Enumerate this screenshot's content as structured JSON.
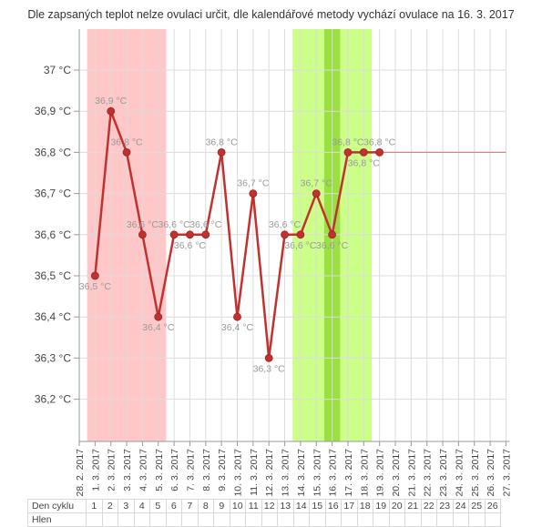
{
  "title": "Dle zapsaných teplot nelze ovulaci určit, dle kalendářové metody vychází ovulace na 16. 3. 2017",
  "table": {
    "row1_label": "Den cyklu",
    "row2_label": "Hlen",
    "days": [
      "1",
      "2",
      "3",
      "4",
      "5",
      "6",
      "7",
      "8",
      "9",
      "10",
      "11",
      "12",
      "13",
      "14",
      "15",
      "16",
      "17",
      "18",
      "19",
      "20",
      "21",
      "22",
      "23",
      "24",
      "25",
      "26"
    ]
  },
  "chart_data": {
    "type": "line",
    "title": "Dle zapsaných teplot nelze ovulaci určit, dle kalendářové metody vychází ovulace na 16. 3. 2017",
    "xlabel": "",
    "ylabel": "",
    "ylim": [
      36.1,
      37.1
    ],
    "y_ticks": [
      "37 °C",
      "36,9 °C",
      "36,8 °C",
      "36,7 °C",
      "36,6 °C",
      "36,5 °C",
      "36,4 °C",
      "36,3 °C",
      "36,2 °C"
    ],
    "y_tick_values": [
      37.0,
      36.9,
      36.8,
      36.7,
      36.6,
      36.5,
      36.4,
      36.3,
      36.2
    ],
    "categories": [
      "28.2.2017",
      "1.3.2017",
      "2.3.2017",
      "3.3.2017",
      "4.3.2017",
      "5.3.2017",
      "6.3.2017",
      "7.3.2017",
      "8.3.2017",
      "9.3.2017",
      "10.3.2017",
      "11.3.2017",
      "12.3.2017",
      "13.3.2017",
      "14.3.2017",
      "15.3.2017",
      "16.3.2017",
      "17.3.2017",
      "18.3.2017",
      "19.3.2017",
      "20.3.2017",
      "21.3.2017",
      "22.3.2017",
      "23.3.2017",
      "24.3.2017",
      "25.3.2017",
      "26.3.2017",
      "27.3.2017"
    ],
    "series": [
      {
        "values": [
          null,
          36.5,
          36.9,
          36.8,
          36.6,
          36.4,
          36.6,
          36.6,
          36.6,
          36.8,
          36.4,
          36.7,
          36.3,
          36.6,
          36.6,
          36.7,
          36.6,
          36.8,
          36.8,
          36.8,
          null,
          null,
          null,
          null,
          null,
          null,
          null,
          null
        ],
        "labels": [
          "",
          "36,5 °C",
          "36,9 °C",
          "36,8 °C",
          "36,6 °C",
          "36,4 °C",
          "36,6 °C",
          "36,6 °C",
          "36,6 °C",
          "36,8 °C",
          "36,4 °C",
          "36,7 °C",
          "36,3 °C",
          "36,6 °C",
          "36,6 °C",
          "36,7 °C",
          "36,6 °C",
          "36,8 °C",
          "36,8 °C",
          "36,8 °C",
          "",
          "",
          "",
          "",
          "",
          "",
          "",
          ""
        ],
        "label_side": [
          "",
          "below",
          "above",
          "above",
          "above",
          "below",
          "above",
          "below",
          "above",
          "above",
          "below",
          "above",
          "below",
          "above",
          "below",
          "above",
          "below",
          "above",
          "below",
          "above",
          "",
          "",
          "",
          "",
          "",
          "",
          "",
          ""
        ],
        "color": "#c0312f"
      }
    ],
    "trend_line": {
      "from": "19.3.2017",
      "to": "27.3.2017",
      "value": 36.8,
      "color": "#e08080"
    },
    "bands": [
      {
        "from": "1.3.2017",
        "to": "5.3.2017",
        "color": "#ffc7c7"
      },
      {
        "from": "14.3.2017",
        "to": "18.3.2017",
        "color": "#ccff88"
      },
      {
        "from": "16.3.2017",
        "to": "16.3.2017",
        "color": "#99e040"
      }
    ],
    "grid": true,
    "legend": "none"
  }
}
